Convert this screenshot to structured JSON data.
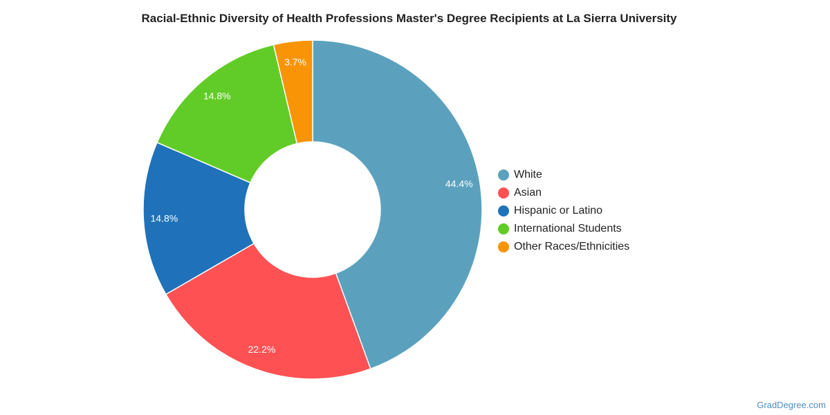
{
  "chart_data": {
    "type": "pie",
    "title": "Racial-Ethnic Diversity of Health Professions Master's Degree Recipients at La Sierra University",
    "categories": [
      "White",
      "Asian",
      "Hispanic or Latino",
      "International Students",
      "Other Races/Ethnicities"
    ],
    "values": [
      44.4,
      22.2,
      14.8,
      14.8,
      3.7
    ],
    "labels": [
      "44.4%",
      "22.2%",
      "14.8%",
      "14.8%",
      "3.7%"
    ],
    "colors": [
      "#5ba1be",
      "#fe5153",
      "#1f72b9",
      "#61cc27",
      "#f99406"
    ],
    "donut": true,
    "legend": "right"
  },
  "watermark": "GradDegree.com"
}
